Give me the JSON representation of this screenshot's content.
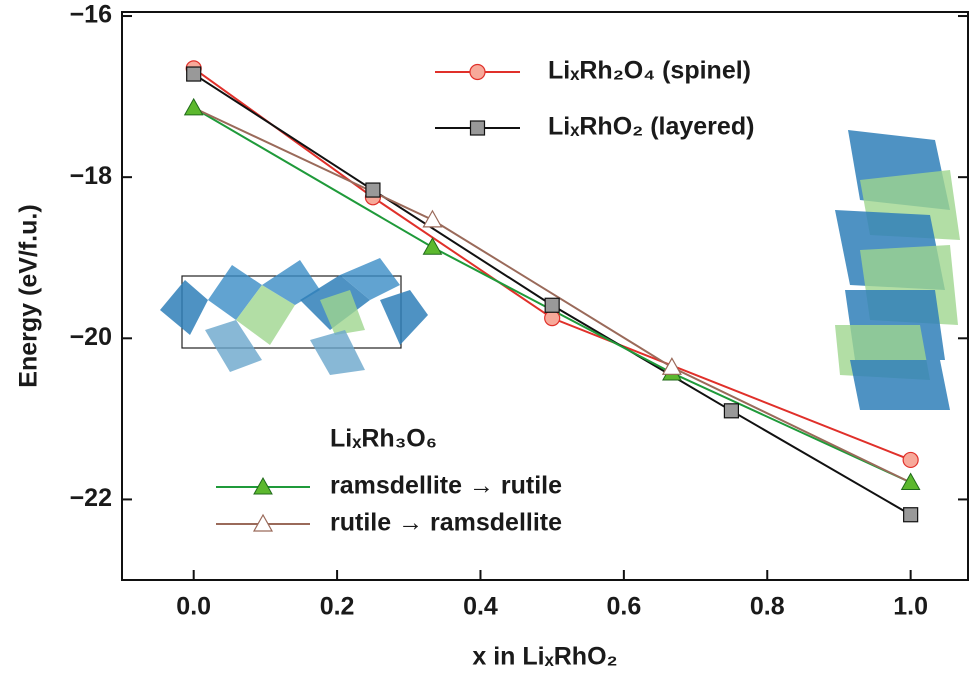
{
  "chart_data": {
    "type": "line",
    "xlabel": "x in LiₓRhO₂",
    "ylabel": "Energy (eV/f.u.)",
    "xlim": [
      -0.1,
      1.08
    ],
    "ylim": [
      -23.0,
      -15.95
    ],
    "xticks": [
      {
        "value": 0,
        "label": "0.0"
      },
      0.2,
      0.4,
      0.6,
      0.8,
      {
        "value": 1,
        "label": "1.0"
      }
    ],
    "yticks": [
      {
        "value": -16,
        "label": "−16"
      },
      {
        "value": -18,
        "label": "−18"
      },
      {
        "value": -20,
        "label": "−20"
      },
      {
        "value": -22,
        "label": "−22"
      }
    ],
    "group_label": "LiₓRh₃O₆",
    "series": [
      {
        "name": "LiₓRh₂O₄ (spinel)",
        "color": "#e0302a",
        "marker": "circle",
        "x": [
          0,
          0.25,
          0.5,
          1.0
        ],
        "values": [
          -16.65,
          -18.25,
          -19.75,
          -21.51
        ]
      },
      {
        "name": "LiₓRhO₂ (layered)",
        "color": "#111111",
        "marker": "square",
        "x": [
          0,
          0.25,
          0.5,
          0.75,
          1.0
        ],
        "values": [
          -16.72,
          -18.16,
          -19.59,
          -20.9,
          -22.19
        ]
      },
      {
        "name": "ramsdellite → rutile",
        "color": "#1f9a3a",
        "marker": "triangle",
        "x": [
          0,
          0.333,
          0.667,
          1.0
        ],
        "values": [
          -17.14,
          -18.87,
          -20.43,
          -21.79
        ]
      },
      {
        "name": "rutile → ramsdellite",
        "color": "#9a6a5a",
        "marker": "open-triangle",
        "x": [
          0.333,
          0.667
        ],
        "values": [
          -18.53,
          -20.36
        ]
      }
    ]
  }
}
